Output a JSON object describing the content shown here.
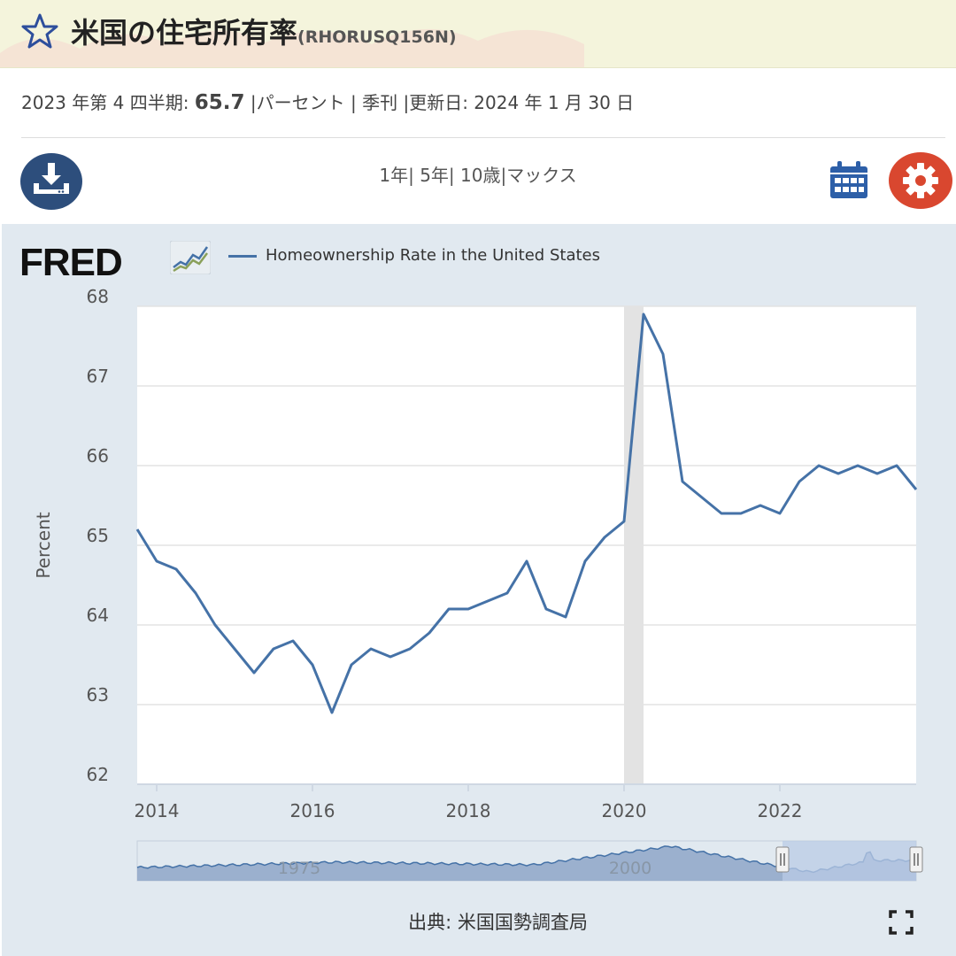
{
  "header": {
    "title": "米国の住宅所有率",
    "series_id": "(RHORUSQ156N)"
  },
  "info": {
    "period": "2023 年第 4 四半期: ",
    "value": "65.7",
    "rest": " |パーセント | 季刊 |更新日: 2024 年 1 月 30 日"
  },
  "range": {
    "options": [
      "1年",
      "5年",
      "10歳",
      "マックス"
    ]
  },
  "logo": "FRED",
  "legend_label": "Homeownership Rate in the United States",
  "source": "出典: 米国国勢調査局",
  "colors": {
    "line": "#4572a7",
    "download": "#2d4e7c",
    "settings": "#d9472f",
    "panel": "#e1e9f0"
  },
  "chart_data": {
    "type": "line",
    "title": "",
    "xlabel": "",
    "ylabel": "Percent",
    "ylim": [
      62,
      68
    ],
    "xlim": [
      2013.75,
      2023.75
    ],
    "y_ticks": [
      "62",
      "63",
      "64",
      "65",
      "66",
      "67",
      "68"
    ],
    "x_ticks": [
      "2014",
      "2016",
      "2018",
      "2020",
      "2022"
    ],
    "recession": [
      2020.0,
      2020.25
    ],
    "series": [
      {
        "name": "Homeownership Rate in the United States",
        "x": [
          2013.75,
          2014.0,
          2014.25,
          2014.5,
          2014.75,
          2015.0,
          2015.25,
          2015.5,
          2015.75,
          2016.0,
          2016.25,
          2016.5,
          2016.75,
          2017.0,
          2017.25,
          2017.5,
          2017.75,
          2018.0,
          2018.25,
          2018.5,
          2018.75,
          2019.0,
          2019.25,
          2019.5,
          2019.75,
          2020.0,
          2020.25,
          2020.5,
          2020.75,
          2021.0,
          2021.25,
          2021.5,
          2021.75,
          2022.0,
          2022.25,
          2022.5,
          2022.75,
          2023.0,
          2023.25,
          2023.5,
          2023.75
        ],
        "values": [
          65.2,
          64.8,
          64.7,
          64.4,
          64.0,
          63.7,
          63.4,
          63.7,
          63.8,
          63.5,
          62.9,
          63.5,
          63.7,
          63.6,
          63.7,
          63.9,
          64.2,
          64.2,
          64.3,
          64.4,
          64.8,
          64.2,
          64.1,
          64.8,
          65.1,
          65.3,
          67.9,
          67.4,
          65.8,
          65.6,
          65.4,
          65.4,
          65.5,
          65.4,
          65.8,
          66.0,
          65.9,
          66.0,
          65.9,
          66.0,
          65.7
        ]
      }
    ],
    "navigator": {
      "x_ticks": [
        "1975",
        "2000"
      ]
    }
  }
}
